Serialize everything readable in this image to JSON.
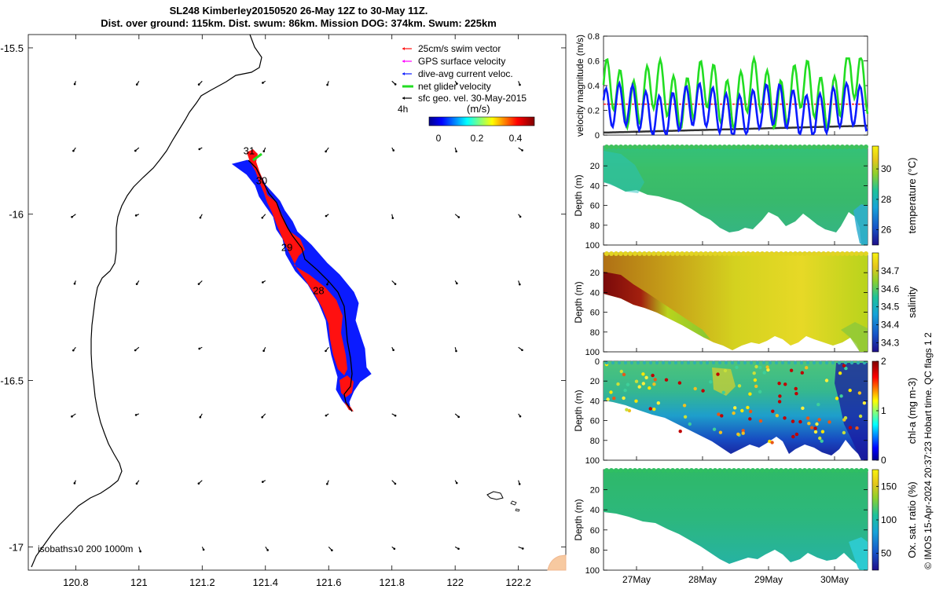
{
  "title": {
    "line1": "SL248 Kimberley20150520 26-May 12Z to 30-May 11Z.",
    "line2": "Dist. over ground: 115km. Dist. swum: 86km. Mission DOG: 374km. Swum: 225km"
  },
  "colors": {
    "red": "#ff1010",
    "blue": "#0b1bff",
    "green": "#22dd22",
    "magenta": "#ff00ff",
    "land": "#f7c9a0"
  },
  "chart_data": [
    {
      "type": "map",
      "xticks": [
        "120.8",
        "121",
        "121.2",
        "121.4",
        "121.6",
        "121.8",
        "122",
        "122.2"
      ],
      "xtick_values": [
        120.8,
        121.0,
        121.2,
        121.4,
        121.6,
        121.8,
        122.0,
        122.2
      ],
      "yticks": [
        "-15.5",
        "-16",
        "-16.5",
        "-17"
      ],
      "ytick_values": [
        -15.5,
        -16.0,
        -16.5,
        -17.0
      ],
      "xlim": [
        120.65,
        122.35
      ],
      "ylim": [
        -17.07,
        -15.46
      ],
      "legend": [
        {
          "label": "25cm/s swim vector",
          "color": "#ff1010"
        },
        {
          "label": "GPS surface velocity",
          "color": "#ff00ff"
        },
        {
          "label": "dive-avg current veloc.",
          "color": "#0b1bff"
        },
        {
          "label": "net glider velocity",
          "color": "#22dd22"
        },
        {
          "label": "sfc geo. vel. 30-May-2015",
          "color": "#000000"
        }
      ],
      "legend_extra": "4h",
      "colorbar": {
        "label": "(m/s)",
        "ticks": [
          "0",
          "0.2",
          "0.4"
        ],
        "range": [
          0,
          0.5
        ]
      },
      "isobaths_label": "isobaths: 0   200  1000m",
      "day_labels": [
        "31",
        "30",
        "29",
        "28"
      ],
      "day_positions": [
        [
          121.33,
          -15.82
        ],
        [
          121.37,
          -15.91
        ],
        [
          121.45,
          -16.11
        ],
        [
          121.55,
          -16.24
        ]
      ]
    },
    {
      "type": "line",
      "ylabel": "velocity magnitude (m/s)",
      "yticks": [
        "0",
        "0.2",
        "0.4",
        "0.6",
        "0.8"
      ],
      "ylim": [
        0,
        0.8
      ],
      "xlim": [
        26.5,
        30.5
      ],
      "series": [
        {
          "name": "net glider velocity",
          "color": "#22dd22"
        },
        {
          "name": "dive-avg current veloc.",
          "color": "#0b1bff"
        },
        {
          "name": "swim speed",
          "color": "#ff1010",
          "value": 0.25
        },
        {
          "name": "sfc geo. vel.",
          "color": "#000000"
        }
      ]
    },
    {
      "type": "heatmap",
      "variable": "temperature",
      "ylabel": "Depth (m)",
      "cbar_label": "temperature (°C)",
      "yticks": [
        "20",
        "40",
        "60",
        "80",
        "100"
      ],
      "cbar_ticks": [
        "26",
        "28",
        "30"
      ],
      "cbar_range": [
        25,
        31.5
      ]
    },
    {
      "type": "heatmap",
      "variable": "salinity",
      "ylabel": "Depth (m)",
      "cbar_label": "salinity",
      "yticks": [
        "20",
        "40",
        "60",
        "80",
        "100"
      ],
      "cbar_ticks": [
        "34.3",
        "34.4",
        "34.5",
        "34.6",
        "34.7"
      ],
      "cbar_range": [
        34.25,
        34.8
      ]
    },
    {
      "type": "heatmap",
      "variable": "chl-a",
      "ylabel": "Depth (m)",
      "cbar_label": "chl-a (mg m-3)",
      "yticks": [
        "0",
        "20",
        "40",
        "60",
        "80",
        "100"
      ],
      "cbar_ticks": [
        "0",
        "1",
        "2"
      ],
      "cbar_range": [
        0,
        2
      ]
    },
    {
      "type": "heatmap",
      "variable": "oxygen",
      "ylabel": "Depth (m)",
      "cbar_label": "Ox. sat. ratio (%)",
      "yticks": [
        "20",
        "40",
        "60",
        "80",
        "100"
      ],
      "cbar_ticks": [
        "50",
        "100",
        "150"
      ],
      "cbar_range": [
        25,
        175
      ],
      "xticks": [
        "27May",
        "28May",
        "29May",
        "30May"
      ],
      "xtick_values": [
        27,
        28,
        29,
        30
      ]
    }
  ],
  "side_note": "© IMOS 15-Apr-2024 20:37:23 Hobart time. QC flags 1  2",
  "qc_flags": "1  2"
}
